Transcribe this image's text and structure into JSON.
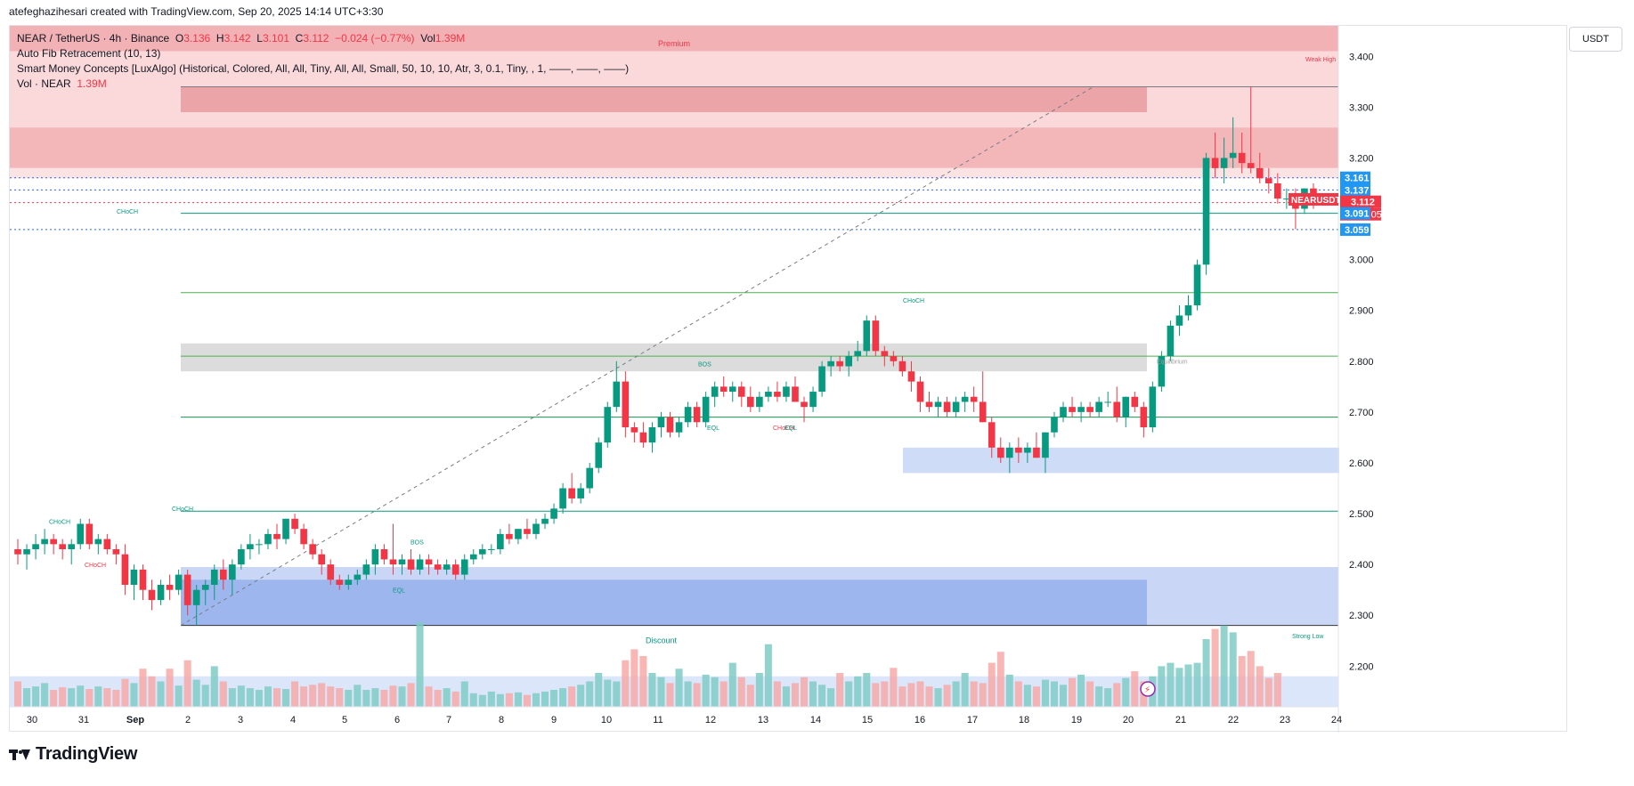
{
  "top_caption": "atefeghazihesari created with TradingView.com, Sep 20, 2025 14:14 UTC+3:30",
  "legend": {
    "symbol": "NEAR / TetherUS · 4h · Binance",
    "o_label": "O",
    "o_value": "3.136",
    "h_label": "H",
    "h_value": "3.142",
    "l_label": "L",
    "l_value": "3.101",
    "c_label": "C",
    "c_value": "3.112",
    "change": "−0.024 (−0.77%)",
    "vol_label": "Vol",
    "vol_value": "1.39M",
    "fib": "Auto Fib Retracement (10, 13)",
    "smc": "Smart Money Concepts [LuxAlgo] (Historical, Colored, All, All, Tiny, All, All, Small, 50, 10, 10, Atr, 3, 0.1, Tiny, , 1, ——, ——, ——)",
    "vol_name": "Vol · NEAR",
    "vol_name_value": "1.39M"
  },
  "currency": "USDT",
  "brand": "TradingView",
  "colors": {
    "up": "#089981",
    "down": "#f23645",
    "up_vol": "#80cbc4",
    "down_vol": "#f7a9a7",
    "premium": "#f8bbbd",
    "discount": "#9db7ee",
    "blue_label": "#2196f3",
    "bg": "#ffffff"
  },
  "chart_data": {
    "type": "candlestick",
    "ylim": [
      2.12,
      3.46
    ],
    "y_ticks": [
      "3.400",
      "3.300",
      "3.200",
      "3.100",
      "3.000",
      "2.900",
      "2.800",
      "2.700",
      "2.600",
      "2.500",
      "2.400",
      "2.300",
      "2.200"
    ],
    "x_ticks": [
      "30",
      "31",
      "Sep",
      "2",
      "3",
      "4",
      "5",
      "6",
      "7",
      "8",
      "9",
      "10",
      "11",
      "12",
      "13",
      "14",
      "15",
      "16",
      "17",
      "18",
      "19",
      "20",
      "21",
      "22",
      "23",
      "24"
    ],
    "price_labels": [
      {
        "value": "3.161",
        "kind": "blue",
        "y": 3.161
      },
      {
        "value": "3.137",
        "kind": "blue",
        "y": 3.137
      },
      {
        "value": "NEARUSDT",
        "kind": "red-name",
        "y": 3.115
      },
      {
        "value": "3.112",
        "kind": "red",
        "y": 3.112
      },
      {
        "value": "01:15:05",
        "kind": "red-time",
        "y": 3.112
      },
      {
        "value": "3.091",
        "kind": "blue",
        "y": 3.091
      },
      {
        "value": "3.059",
        "kind": "blue",
        "y": 3.059
      }
    ],
    "annotations": [
      {
        "text": "Premium",
        "kind": "premium"
      },
      {
        "text": "Weak High",
        "kind": "weak-high"
      },
      {
        "text": "Equilibrium",
        "kind": "equilibrium"
      },
      {
        "text": "Discount",
        "kind": "discount"
      },
      {
        "text": "Strong Low",
        "kind": "strong-low"
      },
      {
        "text": "CHoCH",
        "kind": "choch-top"
      },
      {
        "text": "CHoCH",
        "kind": "choch-left-teal"
      },
      {
        "text": "CHoCH",
        "kind": "choch-left-red"
      },
      {
        "text": "CHoCH",
        "kind": "choch-sep2"
      },
      {
        "text": "CHoCH",
        "kind": "choch-sep16"
      },
      {
        "text": "BOS",
        "kind": "bos-sep6"
      },
      {
        "text": "BOS",
        "kind": "bos-sep11"
      },
      {
        "text": "EQL",
        "kind": "eql-sep6"
      },
      {
        "text": "EQL",
        "kind": "eql-sep12"
      },
      {
        "text": "CHoCH",
        "kind": "choch-sep14-red"
      },
      {
        "text": "EQL",
        "kind": "eql-sep14"
      }
    ],
    "candles": [
      [
        2.43,
        2.45,
        2.4,
        2.42
      ],
      [
        2.42,
        2.44,
        2.39,
        2.43
      ],
      [
        2.43,
        2.46,
        2.41,
        2.44
      ],
      [
        2.44,
        2.47,
        2.42,
        2.45
      ],
      [
        2.45,
        2.46,
        2.42,
        2.44
      ],
      [
        2.44,
        2.45,
        2.41,
        2.43
      ],
      [
        2.43,
        2.45,
        2.4,
        2.44
      ],
      [
        2.44,
        2.49,
        2.43,
        2.48
      ],
      [
        2.48,
        2.49,
        2.43,
        2.44
      ],
      [
        2.44,
        2.46,
        2.42,
        2.45
      ],
      [
        2.45,
        2.46,
        2.42,
        2.43
      ],
      [
        2.43,
        2.44,
        2.4,
        2.42
      ],
      [
        2.42,
        2.44,
        2.34,
        2.36
      ],
      [
        2.36,
        2.4,
        2.33,
        2.39
      ],
      [
        2.39,
        2.4,
        2.33,
        2.35
      ],
      [
        2.35,
        2.37,
        2.31,
        2.33
      ],
      [
        2.33,
        2.37,
        2.32,
        2.36
      ],
      [
        2.36,
        2.38,
        2.33,
        2.35
      ],
      [
        2.35,
        2.39,
        2.34,
        2.38
      ],
      [
        2.38,
        2.39,
        2.3,
        2.32
      ],
      [
        2.32,
        2.36,
        2.28,
        2.35
      ],
      [
        2.35,
        2.37,
        2.32,
        2.36
      ],
      [
        2.36,
        2.4,
        2.33,
        2.39
      ],
      [
        2.39,
        2.41,
        2.35,
        2.37
      ],
      [
        2.37,
        2.41,
        2.34,
        2.4
      ],
      [
        2.4,
        2.44,
        2.39,
        2.43
      ],
      [
        2.43,
        2.46,
        2.41,
        2.44
      ],
      [
        2.44,
        2.45,
        2.42,
        2.44
      ],
      [
        2.44,
        2.47,
        2.43,
        2.46
      ],
      [
        2.46,
        2.48,
        2.43,
        2.45
      ],
      [
        2.45,
        2.49,
        2.44,
        2.49
      ],
      [
        2.49,
        2.5,
        2.46,
        2.47
      ],
      [
        2.47,
        2.48,
        2.43,
        2.44
      ],
      [
        2.44,
        2.45,
        2.41,
        2.42
      ],
      [
        2.42,
        2.43,
        2.38,
        2.4
      ],
      [
        2.4,
        2.41,
        2.36,
        2.37
      ],
      [
        2.37,
        2.38,
        2.35,
        2.36
      ],
      [
        2.36,
        2.38,
        2.35,
        2.37
      ],
      [
        2.37,
        2.39,
        2.36,
        2.38
      ],
      [
        2.38,
        2.41,
        2.37,
        2.4
      ],
      [
        2.4,
        2.44,
        2.38,
        2.43
      ],
      [
        2.43,
        2.44,
        2.4,
        2.41
      ],
      [
        2.41,
        2.48,
        2.38,
        2.4
      ],
      [
        2.4,
        2.42,
        2.38,
        2.41
      ],
      [
        2.41,
        2.43,
        2.38,
        2.39
      ],
      [
        2.39,
        2.42,
        2.38,
        2.41
      ],
      [
        2.41,
        2.42,
        2.38,
        2.4
      ],
      [
        2.4,
        2.41,
        2.38,
        2.39
      ],
      [
        2.39,
        2.41,
        2.38,
        2.4
      ],
      [
        2.4,
        2.41,
        2.37,
        2.38
      ],
      [
        2.38,
        2.42,
        2.37,
        2.41
      ],
      [
        2.41,
        2.43,
        2.4,
        2.42
      ],
      [
        2.42,
        2.44,
        2.41,
        2.43
      ],
      [
        2.43,
        2.44,
        2.42,
        2.43
      ],
      [
        2.43,
        2.47,
        2.42,
        2.46
      ],
      [
        2.46,
        2.48,
        2.44,
        2.45
      ],
      [
        2.45,
        2.47,
        2.44,
        2.47
      ],
      [
        2.47,
        2.49,
        2.45,
        2.46
      ],
      [
        2.46,
        2.49,
        2.45,
        2.48
      ],
      [
        2.48,
        2.5,
        2.47,
        2.49
      ],
      [
        2.49,
        2.52,
        2.48,
        2.51
      ],
      [
        2.51,
        2.56,
        2.5,
        2.55
      ],
      [
        2.55,
        2.58,
        2.52,
        2.53
      ],
      [
        2.53,
        2.56,
        2.52,
        2.55
      ],
      [
        2.55,
        2.6,
        2.54,
        2.59
      ],
      [
        2.59,
        2.65,
        2.58,
        2.64
      ],
      [
        2.64,
        2.72,
        2.63,
        2.71
      ],
      [
        2.71,
        2.8,
        2.7,
        2.76
      ],
      [
        2.76,
        2.78,
        2.65,
        2.67
      ],
      [
        2.67,
        2.68,
        2.64,
        2.66
      ],
      [
        2.66,
        2.68,
        2.63,
        2.64
      ],
      [
        2.64,
        2.68,
        2.62,
        2.67
      ],
      [
        2.67,
        2.7,
        2.65,
        2.69
      ],
      [
        2.69,
        2.7,
        2.65,
        2.66
      ],
      [
        2.66,
        2.69,
        2.65,
        2.68
      ],
      [
        2.68,
        2.72,
        2.67,
        2.71
      ],
      [
        2.71,
        2.72,
        2.67,
        2.68
      ],
      [
        2.68,
        2.74,
        2.67,
        2.73
      ],
      [
        2.73,
        2.76,
        2.71,
        2.75
      ],
      [
        2.75,
        2.77,
        2.73,
        2.74
      ],
      [
        2.74,
        2.76,
        2.72,
        2.75
      ],
      [
        2.75,
        2.76,
        2.71,
        2.73
      ],
      [
        2.73,
        2.75,
        2.7,
        2.71
      ],
      [
        2.71,
        2.74,
        2.7,
        2.73
      ],
      [
        2.73,
        2.75,
        2.72,
        2.74
      ],
      [
        2.74,
        2.76,
        2.72,
        2.73
      ],
      [
        2.73,
        2.76,
        2.72,
        2.75
      ],
      [
        2.75,
        2.77,
        2.72,
        2.72
      ],
      [
        2.72,
        2.73,
        2.68,
        2.71
      ],
      [
        2.71,
        2.75,
        2.7,
        2.74
      ],
      [
        2.74,
        2.8,
        2.73,
        2.79
      ],
      [
        2.79,
        2.81,
        2.77,
        2.8
      ],
      [
        2.8,
        2.81,
        2.78,
        2.79
      ],
      [
        2.79,
        2.82,
        2.77,
        2.81
      ],
      [
        2.81,
        2.84,
        2.8,
        2.82
      ],
      [
        2.82,
        2.89,
        2.81,
        2.88
      ],
      [
        2.88,
        2.89,
        2.81,
        2.82
      ],
      [
        2.82,
        2.83,
        2.79,
        2.81
      ],
      [
        2.81,
        2.82,
        2.79,
        2.8
      ],
      [
        2.8,
        2.81,
        2.77,
        2.78
      ],
      [
        2.78,
        2.8,
        2.74,
        2.76
      ],
      [
        2.76,
        2.77,
        2.7,
        2.72
      ],
      [
        2.72,
        2.74,
        2.7,
        2.71
      ],
      [
        2.71,
        2.73,
        2.69,
        2.72
      ],
      [
        2.72,
        2.73,
        2.69,
        2.7
      ],
      [
        2.7,
        2.73,
        2.69,
        2.72
      ],
      [
        2.72,
        2.74,
        2.7,
        2.73
      ],
      [
        2.73,
        2.75,
        2.7,
        2.72
      ],
      [
        2.72,
        2.78,
        2.68,
        2.68
      ],
      [
        2.68,
        2.69,
        2.61,
        2.63
      ],
      [
        2.63,
        2.65,
        2.6,
        2.61
      ],
      [
        2.61,
        2.64,
        2.58,
        2.63
      ],
      [
        2.63,
        2.65,
        2.6,
        2.62
      ],
      [
        2.62,
        2.64,
        2.6,
        2.63
      ],
      [
        2.63,
        2.66,
        2.61,
        2.61
      ],
      [
        2.61,
        2.66,
        2.58,
        2.66
      ],
      [
        2.66,
        2.7,
        2.65,
        2.69
      ],
      [
        2.69,
        2.72,
        2.68,
        2.71
      ],
      [
        2.71,
        2.73,
        2.69,
        2.7
      ],
      [
        2.7,
        2.72,
        2.68,
        2.71
      ],
      [
        2.71,
        2.72,
        2.69,
        2.7
      ],
      [
        2.7,
        2.73,
        2.69,
        2.72
      ],
      [
        2.72,
        2.74,
        2.71,
        2.72
      ],
      [
        2.72,
        2.75,
        2.68,
        2.69
      ],
      [
        2.69,
        2.73,
        2.67,
        2.73
      ],
      [
        2.73,
        2.74,
        2.7,
        2.71
      ],
      [
        2.71,
        2.72,
        2.65,
        2.67
      ],
      [
        2.67,
        2.76,
        2.66,
        2.75
      ],
      [
        2.75,
        2.82,
        2.74,
        2.81
      ],
      [
        2.81,
        2.88,
        2.8,
        2.87
      ],
      [
        2.87,
        2.91,
        2.85,
        2.89
      ],
      [
        2.89,
        2.93,
        2.88,
        2.91
      ],
      [
        2.91,
        3.0,
        2.9,
        2.99
      ],
      [
        2.99,
        3.21,
        2.97,
        3.2
      ],
      [
        3.2,
        3.25,
        3.16,
        3.18
      ],
      [
        3.18,
        3.24,
        3.15,
        3.2
      ],
      [
        3.2,
        3.28,
        3.18,
        3.21
      ],
      [
        3.21,
        3.25,
        3.17,
        3.19
      ],
      [
        3.19,
        3.34,
        3.17,
        3.18
      ],
      [
        3.18,
        3.21,
        3.15,
        3.16
      ],
      [
        3.16,
        3.18,
        3.13,
        3.15
      ],
      [
        3.15,
        3.17,
        3.11,
        3.12
      ],
      [
        3.12,
        3.14,
        3.1,
        3.12
      ],
      [
        3.12,
        3.14,
        3.06,
        3.1
      ],
      [
        3.1,
        3.14,
        3.09,
        3.14
      ],
      [
        3.14,
        3.15,
        3.1,
        3.11
      ]
    ],
    "volume_scale_note": "",
    "volumes": [
      0.3,
      0.22,
      0.24,
      0.28,
      0.2,
      0.23,
      0.22,
      0.25,
      0.21,
      0.24,
      0.22,
      0.2,
      0.33,
      0.28,
      0.45,
      0.36,
      0.3,
      0.45,
      0.25,
      0.55,
      0.32,
      0.26,
      0.48,
      0.3,
      0.22,
      0.25,
      0.22,
      0.2,
      0.24,
      0.22,
      0.21,
      0.3,
      0.24,
      0.26,
      0.28,
      0.24,
      0.22,
      0.2,
      0.26,
      0.2,
      0.22,
      0.2,
      0.25,
      0.24,
      0.28,
      1.0,
      0.24,
      0.2,
      0.22,
      0.18,
      0.3,
      0.16,
      0.14,
      0.18,
      0.15,
      0.16,
      0.17,
      0.14,
      0.16,
      0.18,
      0.2,
      0.22,
      0.24,
      0.26,
      0.3,
      0.4,
      0.32,
      0.3,
      0.55,
      0.68,
      0.6,
      0.4,
      0.35,
      0.28,
      0.45,
      0.3,
      0.28,
      0.38,
      0.35,
      0.3,
      0.52,
      0.35,
      0.26,
      0.4,
      0.74,
      0.3,
      0.24,
      0.28,
      0.35,
      0.3,
      0.26,
      0.22,
      0.4,
      0.3,
      0.36,
      0.4,
      0.28,
      0.3,
      0.46,
      0.24,
      0.28,
      0.3,
      0.24,
      0.22,
      0.26,
      0.3,
      0.4,
      0.3,
      0.28,
      0.52,
      0.65,
      0.38,
      0.3,
      0.26,
      0.24,
      0.32,
      0.3,
      0.26,
      0.34,
      0.38,
      0.3,
      0.24,
      0.22,
      0.28,
      0.34,
      0.42,
      0.3,
      0.36,
      0.48,
      0.52,
      0.46,
      0.5,
      0.52,
      0.8,
      0.92,
      0.96,
      0.88,
      0.6,
      0.66,
      0.48,
      0.34,
      0.4
    ],
    "up_count": 0
  }
}
